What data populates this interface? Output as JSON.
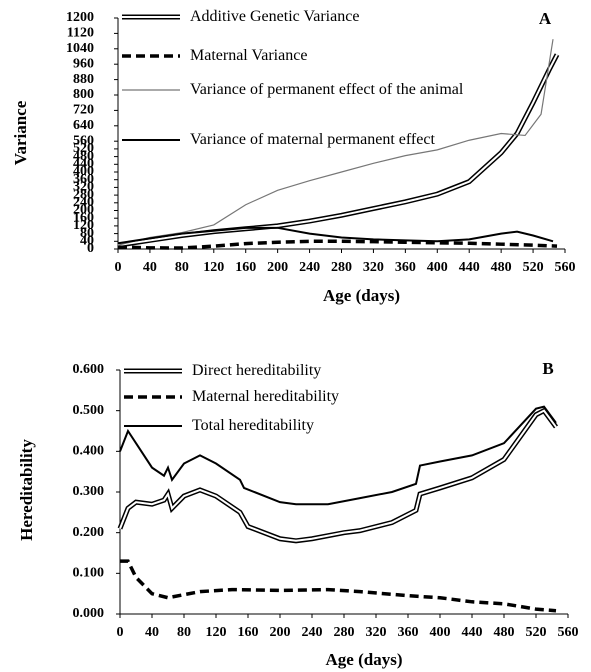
{
  "chart_data": [
    {
      "type": "line",
      "panel_label": "A",
      "xlabel": "Age (days)",
      "ylabel": "Variance",
      "xlim": [
        0,
        560
      ],
      "xticks": [
        0,
        40,
        80,
        120,
        160,
        200,
        240,
        280,
        320,
        360,
        400,
        440,
        480,
        520,
        560
      ],
      "ylim": [
        0,
        1200
      ],
      "yticks": [
        0,
        40,
        80,
        120,
        160,
        200,
        240,
        280,
        320,
        360,
        400,
        440,
        480,
        520,
        560,
        640,
        720,
        800,
        880,
        960,
        1040,
        1120,
        1200
      ],
      "series": [
        {
          "name": "Additive Genetic Variance",
          "color": "#000000",
          "style": "double",
          "x": [
            0,
            40,
            80,
            120,
            160,
            200,
            240,
            280,
            320,
            360,
            400,
            440,
            480,
            500,
            520,
            540,
            550
          ],
          "values": [
            20,
            45,
            70,
            90,
            105,
            120,
            145,
            175,
            210,
            245,
            285,
            350,
            500,
            600,
            760,
            930,
            1010
          ]
        },
        {
          "name": "Maternal Variance",
          "color": "#000000",
          "style": "dashed",
          "x": [
            0,
            40,
            80,
            120,
            160,
            200,
            240,
            280,
            320,
            360,
            400,
            440,
            480,
            520,
            550
          ],
          "values": [
            10,
            6,
            5,
            15,
            28,
            35,
            40,
            40,
            38,
            35,
            32,
            30,
            25,
            20,
            15
          ]
        },
        {
          "name": "Variance of permanent effect of the animal",
          "color": "#777777",
          "style": "thin",
          "x": [
            0,
            40,
            80,
            120,
            160,
            200,
            240,
            280,
            320,
            360,
            400,
            440,
            480,
            510,
            530,
            545
          ],
          "values": [
            20,
            60,
            85,
            125,
            230,
            305,
            355,
            400,
            445,
            485,
            515,
            565,
            600,
            590,
            700,
            1090
          ]
        },
        {
          "name": "Variance of maternal permanent effect",
          "color": "#000000",
          "style": "solid",
          "x": [
            0,
            40,
            80,
            120,
            160,
            200,
            240,
            280,
            320,
            360,
            400,
            440,
            480,
            500,
            520,
            545
          ],
          "values": [
            30,
            55,
            80,
            95,
            110,
            110,
            80,
            60,
            50,
            45,
            40,
            50,
            80,
            90,
            70,
            40
          ]
        }
      ]
    },
    {
      "type": "line",
      "panel_label": "B",
      "xlabel": "Age (days)",
      "ylabel": "Hereditability",
      "xlim": [
        0,
        560
      ],
      "xticks": [
        0,
        40,
        80,
        120,
        160,
        200,
        240,
        280,
        320,
        360,
        400,
        440,
        480,
        520,
        560
      ],
      "ylim": [
        0,
        0.6
      ],
      "yticks": [
        {
          "value": 0,
          "label": "0.000"
        },
        {
          "value": 0.1,
          "label": "0.100"
        },
        {
          "value": 0.2,
          "label": "0.200"
        },
        {
          "value": 0.3,
          "label": "0.300"
        },
        {
          "value": 0.4,
          "label": "0.400"
        },
        {
          "value": 0.5,
          "label": "0.500"
        },
        {
          "value": 0.6,
          "label": "0.600"
        }
      ],
      "series": [
        {
          "name": "Direct hereditability",
          "color": "#000000",
          "style": "double",
          "x": [
            0,
            10,
            20,
            40,
            55,
            60,
            65,
            80,
            100,
            120,
            150,
            160,
            200,
            220,
            240,
            280,
            300,
            340,
            370,
            375,
            400,
            440,
            480,
            520,
            530,
            545
          ],
          "values": [
            0.21,
            0.26,
            0.275,
            0.27,
            0.28,
            0.295,
            0.26,
            0.29,
            0.305,
            0.29,
            0.25,
            0.215,
            0.185,
            0.18,
            0.185,
            0.2,
            0.205,
            0.225,
            0.255,
            0.295,
            0.31,
            0.335,
            0.38,
            0.49,
            0.5,
            0.46
          ]
        },
        {
          "name": "Maternal hereditability",
          "color": "#000000",
          "style": "dashed",
          "x": [
            0,
            10,
            20,
            40,
            60,
            100,
            140,
            200,
            260,
            300,
            360,
            400,
            440,
            480,
            520,
            545
          ],
          "values": [
            0.13,
            0.13,
            0.09,
            0.05,
            0.04,
            0.055,
            0.06,
            0.058,
            0.06,
            0.055,
            0.045,
            0.04,
            0.03,
            0.025,
            0.012,
            0.008
          ]
        },
        {
          "name": "Total hereditability",
          "color": "#000000",
          "style": "solid",
          "x": [
            0,
            10,
            20,
            40,
            55,
            60,
            65,
            80,
            100,
            120,
            150,
            155,
            200,
            220,
            260,
            300,
            340,
            370,
            375,
            400,
            440,
            480,
            520,
            530,
            545
          ],
          "values": [
            0.4,
            0.45,
            0.42,
            0.36,
            0.34,
            0.36,
            0.33,
            0.37,
            0.39,
            0.37,
            0.33,
            0.31,
            0.275,
            0.27,
            0.27,
            0.285,
            0.3,
            0.32,
            0.365,
            0.375,
            0.39,
            0.42,
            0.505,
            0.51,
            0.47
          ]
        }
      ]
    }
  ]
}
